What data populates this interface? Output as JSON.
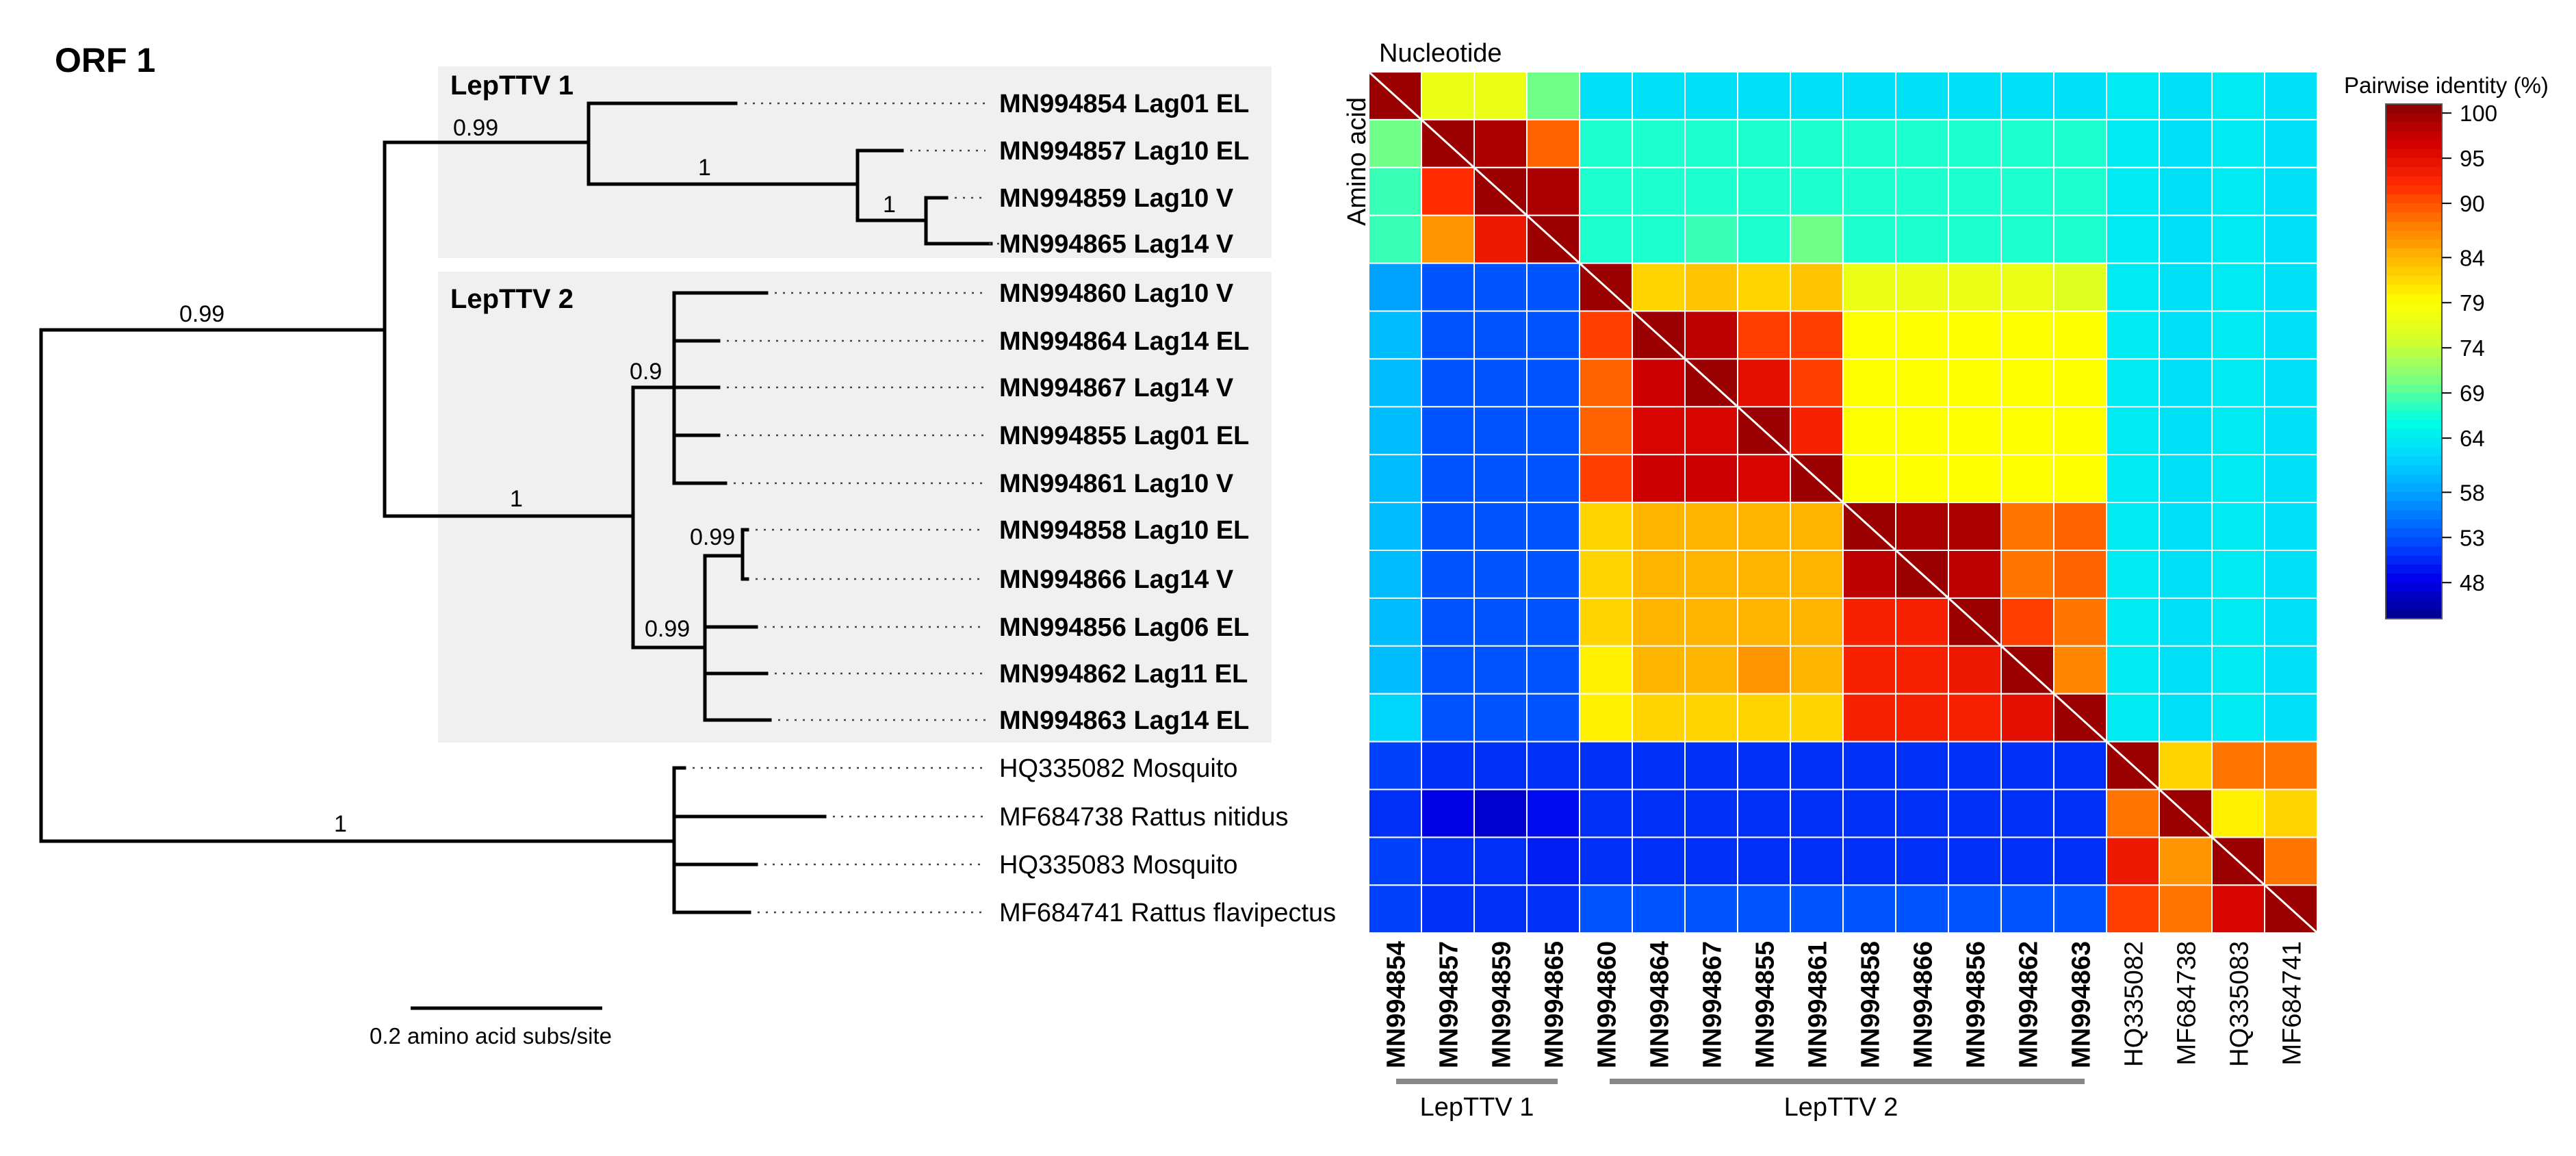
{
  "panel_title": "ORF 1",
  "tree": {
    "clades": [
      {
        "label": "LepTTV 1"
      },
      {
        "label": "LepTTV 2"
      }
    ],
    "leaves": [
      {
        "label": "MN994854 Lag01 EL",
        "bold": true
      },
      {
        "label": "MN994857 Lag10 EL",
        "bold": true
      },
      {
        "label": "MN994859 Lag10 V",
        "bold": true
      },
      {
        "label": "MN994865 Lag14 V",
        "bold": true
      },
      {
        "label": "MN994860 Lag10 V",
        "bold": true
      },
      {
        "label": "MN994864 Lag14 EL",
        "bold": true
      },
      {
        "label": "MN994867 Lag14 V",
        "bold": true
      },
      {
        "label": "MN994855 Lag01 EL",
        "bold": true
      },
      {
        "label": "MN994861 Lag10 V",
        "bold": true
      },
      {
        "label": "MN994858 Lag10 EL",
        "bold": true
      },
      {
        "label": "MN994866 Lag14 V",
        "bold": true
      },
      {
        "label": "MN994856 Lag06 EL",
        "bold": true
      },
      {
        "label": "MN994862 Lag11 EL",
        "bold": true
      },
      {
        "label": "MN994863 Lag14 EL",
        "bold": true
      },
      {
        "label": "HQ335082 Mosquito",
        "bold": false
      },
      {
        "label": "MF684738 Rattus nitidus",
        "bold": false
      },
      {
        "label": "HQ335083 Mosquito",
        "bold": false
      },
      {
        "label": "MF684741 Rattus flavipectus",
        "bold": false
      }
    ],
    "support_values": [
      "0.99",
      "1",
      "1",
      "0.99",
      "0.9",
      "1",
      "0.99",
      "0.99",
      "1"
    ],
    "scale_bar_label": "0.2 amino acid subs/site"
  },
  "heatmap": {
    "top_label": "Nucleotide",
    "side_label": "Amino acid",
    "columns": [
      "MN994854",
      "MN994857",
      "MN994859",
      "MN994865",
      "MN994860",
      "MN994864",
      "MN994867",
      "MN994855",
      "MN994861",
      "MN994858",
      "MN994866",
      "MN994856",
      "MN994862",
      "MN994863",
      "HQ335082",
      "MF684738",
      "HQ335083",
      "MF684741"
    ],
    "bold_columns": 14,
    "group_brackets": [
      {
        "label": "LepTTV 1"
      },
      {
        "label": "LepTTV 2"
      }
    ],
    "upper_triangle": "nucleotide pairwise identity",
    "lower_triangle": "amino acid pairwise identity",
    "matrix": [
      [
        100,
        77,
        77,
        70,
        63,
        63,
        63,
        63,
        63,
        63,
        63,
        63,
        63,
        63,
        64,
        63,
        64,
        63
      ],
      [
        70,
        100,
        99,
        89,
        67,
        67,
        67,
        67,
        67,
        67,
        67,
        67,
        67,
        67,
        64,
        63,
        64,
        63
      ],
      [
        68,
        92,
        100,
        99,
        67,
        67,
        67,
        67,
        67,
        67,
        67,
        67,
        67,
        67,
        64,
        63,
        64,
        63
      ],
      [
        68,
        86,
        94,
        100,
        67,
        67,
        68,
        67,
        70,
        67,
        67,
        67,
        67,
        67,
        64,
        63,
        64,
        63
      ],
      [
        58,
        53,
        53,
        53,
        100,
        82,
        83,
        82,
        83,
        77,
        77,
        77,
        77,
        76,
        64,
        63,
        64,
        63
      ],
      [
        60,
        53,
        53,
        53,
        91,
        100,
        98,
        91,
        91,
        79,
        79,
        79,
        79,
        79,
        64,
        63,
        64,
        63
      ],
      [
        60,
        53,
        53,
        53,
        89,
        97,
        100,
        95,
        91,
        79,
        79,
        79,
        79,
        79,
        64,
        63,
        64,
        63
      ],
      [
        60,
        53,
        53,
        53,
        89,
        96,
        96,
        100,
        93,
        79,
        79,
        79,
        79,
        79,
        64,
        63,
        64,
        63
      ],
      [
        60,
        53,
        53,
        53,
        91,
        97,
        97,
        96,
        100,
        79,
        79,
        79,
        79,
        79,
        64,
        63,
        64,
        63
      ],
      [
        60,
        53,
        53,
        53,
        82,
        84,
        84,
        84,
        84,
        100,
        99,
        99,
        88,
        89,
        64,
        63,
        64,
        63
      ],
      [
        60,
        53,
        53,
        53,
        82,
        84,
        84,
        84,
        84,
        98,
        100,
        98,
        88,
        89,
        64,
        63,
        64,
        63
      ],
      [
        60,
        53,
        53,
        53,
        82,
        84,
        84,
        84,
        84,
        93,
        93,
        100,
        91,
        88,
        64,
        63,
        64,
        63
      ],
      [
        60,
        53,
        53,
        53,
        80,
        84,
        84,
        86,
        84,
        93,
        93,
        94,
        100,
        87,
        64,
        63,
        64,
        63
      ],
      [
        62,
        53,
        53,
        53,
        80,
        82,
        82,
        82,
        82,
        93,
        93,
        93,
        95,
        100,
        64,
        63,
        64,
        63
      ],
      [
        52,
        51,
        51,
        51,
        51,
        51,
        51,
        51,
        51,
        51,
        51,
        51,
        51,
        51,
        100,
        82,
        88,
        88
      ],
      [
        51,
        48,
        47,
        49,
        51,
        51,
        51,
        51,
        51,
        51,
        51,
        51,
        51,
        51,
        88,
        100,
        80,
        82
      ],
      [
        52,
        51,
        51,
        50,
        51,
        51,
        51,
        51,
        51,
        51,
        51,
        51,
        51,
        51,
        94,
        86,
        100,
        88
      ],
      [
        52,
        51,
        51,
        51,
        53,
        53,
        53,
        53,
        53,
        53,
        53,
        53,
        53,
        53,
        91,
        88,
        96,
        100
      ]
    ]
  },
  "colorbar": {
    "title": "Pairwise identity (%)",
    "ticks": [
      "100",
      "95",
      "90",
      "84",
      "79",
      "74",
      "69",
      "64",
      "58",
      "53",
      "48"
    ],
    "range": [
      44,
      101
    ]
  },
  "colors": {
    "clade_box": "#f0f0f0",
    "scale": [
      "#00008b",
      "#0000ee",
      "#0050ff",
      "#0096ff",
      "#00d2ff",
      "#00ffe6",
      "#78ff82",
      "#d2ff2d",
      "#ffff00",
      "#ffbe00",
      "#ff7800",
      "#ff2800",
      "#d20000",
      "#8b0000"
    ]
  }
}
